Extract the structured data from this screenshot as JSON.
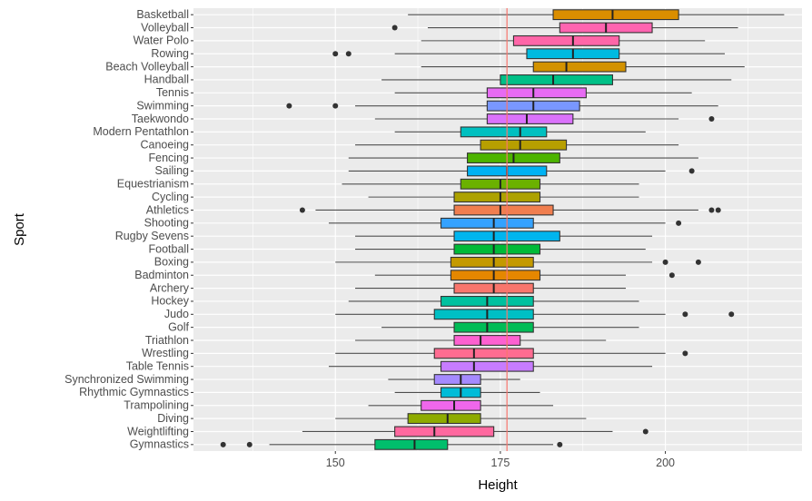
{
  "chart_data": {
    "type": "boxplot",
    "title": "",
    "xlabel": "Height",
    "ylabel": "Sport",
    "xlim": [
      128.5,
      220.7
    ],
    "x_ticks": [
      150,
      175,
      200
    ],
    "x_tick_labels": [
      "150",
      "175",
      "200"
    ],
    "grid": true,
    "legend": "none",
    "reference_line": {
      "x": 176,
      "color": "#F8766D"
    },
    "colors": {
      "panel": "#EBEBEB",
      "grid": "#FFFFFF",
      "whisker": "#4D4D4D",
      "outlier": "#333333"
    },
    "series": [
      {
        "name": "Basketball",
        "color": "#DB8E00",
        "whisker_low": 161,
        "q1": 183,
        "median": 192,
        "q3": 202,
        "whisker_high": 218,
        "outliers": []
      },
      {
        "name": "Volleyball",
        "color": "#FF64B0",
        "whisker_low": 164,
        "q1": 184,
        "median": 191,
        "q3": 198,
        "whisker_high": 211,
        "outliers": [
          159
        ]
      },
      {
        "name": "Water Polo",
        "color": "#FF66A8",
        "whisker_low": 163,
        "q1": 177,
        "median": 186,
        "q3": 193,
        "whisker_high": 206,
        "outliers": []
      },
      {
        "name": "Rowing",
        "color": "#00BAE0",
        "whisker_low": 159,
        "q1": 179,
        "median": 186,
        "q3": 193,
        "whisker_high": 209,
        "outliers": [
          150,
          152
        ]
      },
      {
        "name": "Beach Volleyball",
        "color": "#D39200",
        "whisker_low": 163,
        "q1": 180,
        "median": 185,
        "q3": 194,
        "whisker_high": 212,
        "outliers": []
      },
      {
        "name": "Handball",
        "color": "#00C087",
        "whisker_low": 157,
        "q1": 175,
        "median": 183,
        "q3": 192,
        "whisker_high": 210,
        "outliers": []
      },
      {
        "name": "Tennis",
        "color": "#E76BF3",
        "whisker_low": 159,
        "q1": 173,
        "median": 180,
        "q3": 188,
        "whisker_high": 204,
        "outliers": []
      },
      {
        "name": "Swimming",
        "color": "#7997FF",
        "whisker_low": 153,
        "q1": 173,
        "median": 180,
        "q3": 187,
        "whisker_high": 208,
        "outliers": [
          143,
          150
        ]
      },
      {
        "name": "Taekwondo",
        "color": "#DA72FB",
        "whisker_low": 156,
        "q1": 173,
        "median": 179,
        "q3": 186,
        "whisker_high": 202,
        "outliers": [
          207
        ]
      },
      {
        "name": "Modern Pentathlon",
        "color": "#00C0C0",
        "whisker_low": 159,
        "q1": 169,
        "median": 178,
        "q3": 182,
        "whisker_high": 197,
        "outliers": []
      },
      {
        "name": "Canoeing",
        "color": "#B79F00",
        "whisker_low": 153,
        "q1": 172,
        "median": 178,
        "q3": 185,
        "whisker_high": 202,
        "outliers": []
      },
      {
        "name": "Fencing",
        "color": "#4DB400",
        "whisker_low": 152,
        "q1": 170,
        "median": 177,
        "q3": 184,
        "whisker_high": 205,
        "outliers": []
      },
      {
        "name": "Sailing",
        "color": "#00B2F3",
        "whisker_low": 152,
        "q1": 170,
        "median": 176,
        "q3": 182,
        "whisker_high": 200,
        "outliers": [
          204
        ]
      },
      {
        "name": "Equestrianism",
        "color": "#6BB100",
        "whisker_low": 151,
        "q1": 169,
        "median": 175,
        "q3": 181,
        "whisker_high": 196,
        "outliers": []
      },
      {
        "name": "Cycling",
        "color": "#ADA200",
        "whisker_low": 155,
        "q1": 168,
        "median": 175,
        "q3": 181,
        "whisker_high": 196,
        "outliers": []
      },
      {
        "name": "Athletics",
        "color": "#F07E4F",
        "whisker_low": 147,
        "q1": 168,
        "median": 175,
        "q3": 183,
        "whisker_high": 205,
        "outliers": [
          145,
          207,
          208
        ]
      },
      {
        "name": "Shooting",
        "color": "#35A2FF",
        "whisker_low": 149,
        "q1": 166,
        "median": 174,
        "q3": 180,
        "whisker_high": 200,
        "outliers": [
          202
        ]
      },
      {
        "name": "Rugby Sevens",
        "color": "#00B5EE",
        "whisker_low": 153,
        "q1": 168,
        "median": 174,
        "q3": 184,
        "whisker_high": 198,
        "outliers": []
      },
      {
        "name": "Football",
        "color": "#00BA38",
        "whisker_low": 153,
        "q1": 168,
        "median": 174,
        "q3": 181,
        "whisker_high": 197,
        "outliers": []
      },
      {
        "name": "Boxing",
        "color": "#C49A00",
        "whisker_low": 150,
        "q1": 167.5,
        "median": 174,
        "q3": 180,
        "whisker_high": 198,
        "outliers": [
          200,
          205
        ]
      },
      {
        "name": "Badminton",
        "color": "#E58700",
        "whisker_low": 156,
        "q1": 167.5,
        "median": 174,
        "q3": 181,
        "whisker_high": 194,
        "outliers": [
          201
        ]
      },
      {
        "name": "Archery",
        "color": "#F8766D",
        "whisker_low": 153,
        "q1": 168,
        "median": 174,
        "q3": 180,
        "whisker_high": 194,
        "outliers": []
      },
      {
        "name": "Hockey",
        "color": "#00C19F",
        "whisker_low": 152,
        "q1": 166,
        "median": 173,
        "q3": 180,
        "whisker_high": 196,
        "outliers": []
      },
      {
        "name": "Judo",
        "color": "#00BFC4",
        "whisker_low": 150,
        "q1": 165,
        "median": 173,
        "q3": 180,
        "whisker_high": 200,
        "outliers": [
          203,
          210
        ]
      },
      {
        "name": "Golf",
        "color": "#00BC56",
        "whisker_low": 157,
        "q1": 168,
        "median": 173,
        "q3": 180,
        "whisker_high": 196,
        "outliers": []
      },
      {
        "name": "Triathlon",
        "color": "#FD61D1",
        "whisker_low": 153,
        "q1": 168,
        "median": 172,
        "q3": 178,
        "whisker_high": 191,
        "outliers": []
      },
      {
        "name": "Wrestling",
        "color": "#FF6C91",
        "whisker_low": 150,
        "q1": 165,
        "median": 171,
        "q3": 180,
        "whisker_high": 200,
        "outliers": [
          203
        ]
      },
      {
        "name": "Table Tennis",
        "color": "#C77CFF",
        "whisker_low": 149,
        "q1": 166,
        "median": 171,
        "q3": 180,
        "whisker_high": 198,
        "outliers": []
      },
      {
        "name": "Synchronized Swimming",
        "color": "#A58AFF",
        "whisker_low": 158,
        "q1": 165,
        "median": 169,
        "q3": 172,
        "whisker_high": 178,
        "outliers": []
      },
      {
        "name": "Rhythmic Gymnastics",
        "color": "#00BCD8",
        "whisker_low": 159,
        "q1": 166,
        "median": 169,
        "q3": 172,
        "whisker_high": 181,
        "outliers": []
      },
      {
        "name": "Trampolining",
        "color": "#EF67EB",
        "whisker_low": 155,
        "q1": 163,
        "median": 168,
        "q3": 172,
        "whisker_high": 183,
        "outliers": []
      },
      {
        "name": "Diving",
        "color": "#8EAB00",
        "whisker_low": 150,
        "q1": 161,
        "median": 167,
        "q3": 172,
        "whisker_high": 188,
        "outliers": []
      },
      {
        "name": "Weightlifting",
        "color": "#FF689F",
        "whisker_low": 145,
        "q1": 159,
        "median": 165,
        "q3": 174,
        "whisker_high": 192,
        "outliers": [
          197
        ]
      },
      {
        "name": "Gymnastics",
        "color": "#00BE6C",
        "whisker_low": 140,
        "q1": 156,
        "median": 162,
        "q3": 167,
        "whisker_high": 183,
        "outliers": [
          133,
          137,
          184
        ]
      }
    ]
  }
}
